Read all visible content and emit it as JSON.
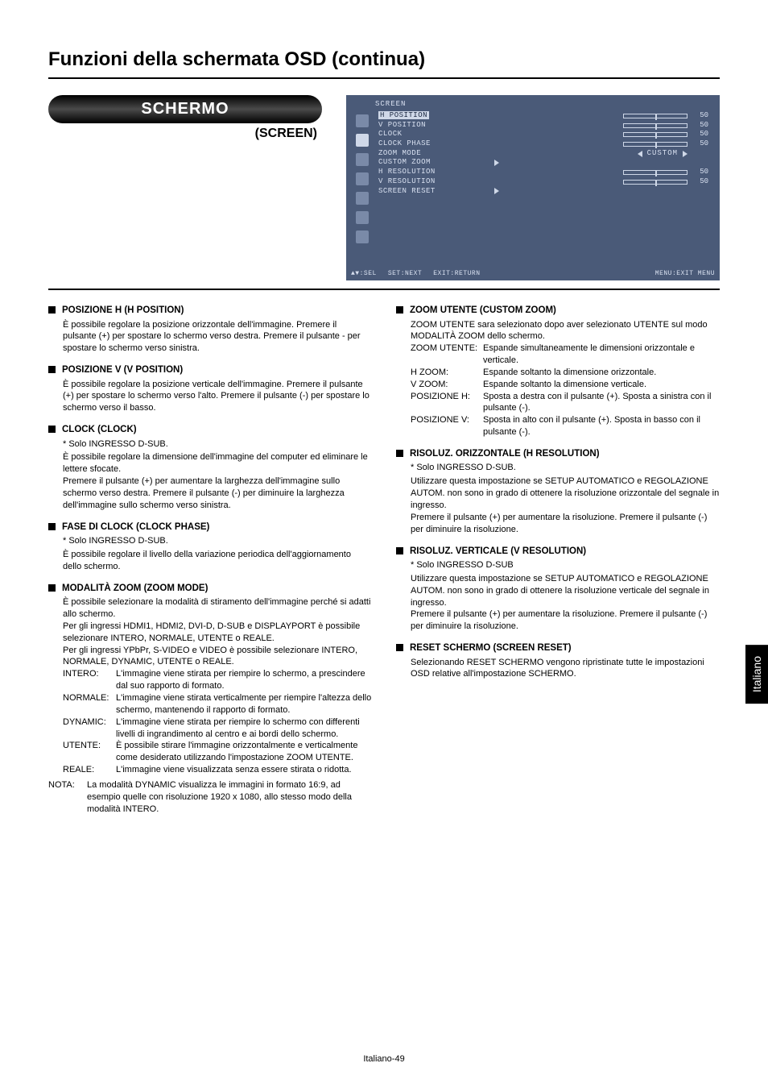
{
  "page": {
    "title": "Funzioni della schermata OSD (continua)",
    "footer": "Italiano-49",
    "side_tab": "Italiano"
  },
  "header": {
    "pill": "SCHERMO",
    "pill_sub": "(SCREEN)"
  },
  "osd": {
    "bg_color": "#4a5a78",
    "fg_color": "#d8e0f0",
    "title": "SCREEN",
    "items": [
      {
        "label": "H POSITION",
        "type": "slider",
        "value": "50"
      },
      {
        "label": "V POSITION",
        "type": "slider",
        "value": "50"
      },
      {
        "label": "CLOCK",
        "type": "slider",
        "value": "50"
      },
      {
        "label": "CLOCK PHASE",
        "type": "slider",
        "value": "50"
      },
      {
        "label": "ZOOM MODE",
        "type": "mode",
        "mode": "CUSTOM"
      },
      {
        "label": "CUSTOM ZOOM",
        "type": "arrow"
      },
      {
        "label": "H RESOLUTION",
        "type": "slider",
        "value": "50"
      },
      {
        "label": "V RESOLUTION",
        "type": "slider",
        "value": "50"
      },
      {
        "label": "SCREEN RESET",
        "type": "arrow"
      }
    ],
    "footer": {
      "sel": "▲▼:SEL",
      "next": "SET:NEXT",
      "return": "EXIT:RETURN",
      "exit": "MENU:EXIT MENU"
    }
  },
  "left": [
    {
      "title": "POSIZIONE H (H POSITION)",
      "body": "È possibile regolare la posizione orizzontale dell'immagine. Premere il pulsante (+) per spostare lo schermo verso destra. Premere il pulsante - per spostare lo schermo verso sinistra."
    },
    {
      "title": "POSIZIONE V (V POSITION)",
      "body": "È possibile regolare la posizione verticale dell'immagine. Premere il pulsante (+) per spostare lo schermo verso l'alto. Premere il pulsante (-) per spostare lo schermo verso il basso."
    },
    {
      "title": "CLOCK (CLOCK)",
      "note": "* Solo INGRESSO D-SUB.",
      "body": "È possibile regolare la dimensione dell'immagine del computer ed eliminare le lettere sfocate.\nPremere il pulsante (+) per aumentare la larghezza dell'immagine sullo schermo verso destra. Premere il pulsante (-) per diminuire la larghezza dell'immagine sullo schermo verso sinistra."
    },
    {
      "title": "FASE DI CLOCK (CLOCK PHASE)",
      "note": "* Solo INGRESSO D-SUB.",
      "body": "È possibile regolare il livello della variazione periodica dell'aggiornamento dello schermo."
    },
    {
      "title": "MODALITÀ ZOOM (ZOOM MODE)",
      "body": "È possibile selezionare la modalità di stiramento dell'immagine perché si adatti allo schermo.\nPer gli ingressi HDMI1, HDMI2, DVI-D, D-SUB e DISPLAYPORT è possibile selezionare INTERO, NORMALE, UTENTE o REALE.\nPer gli ingressi YPbPr, S-VIDEO e VIDEO è possibile selezionare INTERO, NORMALE, DYNAMIC, UTENTE o REALE.",
      "defs": [
        {
          "term": "INTERO:",
          "def": "L'immagine viene stirata per riempire lo schermo, a prescindere dal suo rapporto di formato."
        },
        {
          "term": "NORMALE:",
          "def": "L'immagine viene stirata verticalmente per riempire l'altezza dello schermo, mantenendo il rapporto di formato."
        },
        {
          "term": "DYNAMIC:",
          "def": "L'immagine viene stirata per riempire lo schermo con differenti livelli di ingrandimento al centro e ai bordi dello schermo."
        },
        {
          "term": "UTENTE:",
          "def": "È possibile stirare l'immagine orizzontalmente e verticalmente come desiderato utilizzando l'impostazione ZOOM UTENTE."
        },
        {
          "term": "REALE:",
          "def": "L'immagine viene visualizzata senza essere stirata o ridotta."
        }
      ],
      "nota": {
        "term": "NOTA:",
        "def": "La modalità DYNAMIC visualizza le immagini in formato 16:9, ad esempio quelle con risoluzione 1920 x 1080, allo stesso modo della modalità INTERO."
      }
    }
  ],
  "right": [
    {
      "title": "ZOOM UTENTE (CUSTOM ZOOM)",
      "body": "ZOOM UTENTE sara selezionato dopo aver selezionato UTENTE sul modo MODALITÀ ZOOM dello schermo.",
      "defs": [
        {
          "term": "ZOOM UTENTE:",
          "def": "Espande simultaneamente le dimensioni orizzontale e verticale."
        },
        {
          "term": "H ZOOM:",
          "def": "Espande soltanto la dimensione orizzontale."
        },
        {
          "term": "V ZOOM:",
          "def": "Espande soltanto la dimensione verticale."
        },
        {
          "term": "POSIZIONE H:",
          "def": "Sposta a destra con il pulsante (+). Sposta a sinistra con il pulsante (-)."
        },
        {
          "term": "POSIZIONE V:",
          "def": "Sposta in alto con il pulsante (+). Sposta in basso con il pulsante (-)."
        }
      ]
    },
    {
      "title": "RISOLUZ. ORIZZONTALE (H RESOLUTION)",
      "note": "* Solo INGRESSO D-SUB.",
      "body": "Utilizzare questa impostazione se SETUP AUTOMATICO e REGOLAZIONE AUTOM. non sono in grado di ottenere la risoluzione orizzontale del segnale in ingresso.\nPremere il pulsante (+) per aumentare la risoluzione. Premere il pulsante (-) per diminuire la risoluzione."
    },
    {
      "title": "RISOLUZ. VERTICALE (V RESOLUTION)",
      "note": "* Solo INGRESSO D-SUB",
      "body": "Utilizzare questa impostazione se SETUP AUTOMATICO e REGOLAZIONE AUTOM. non sono in grado di ottenere la risoluzione verticale del segnale in ingresso.\nPremere il pulsante (+) per aumentare la risoluzione. Premere il pulsante (-) per diminuire la risoluzione."
    },
    {
      "title": "RESET SCHERMO (SCREEN RESET)",
      "body": "Selezionando RESET SCHERMO vengono ripristinate tutte le impostazioni OSD relative all'impostazione SCHERMO."
    }
  ]
}
